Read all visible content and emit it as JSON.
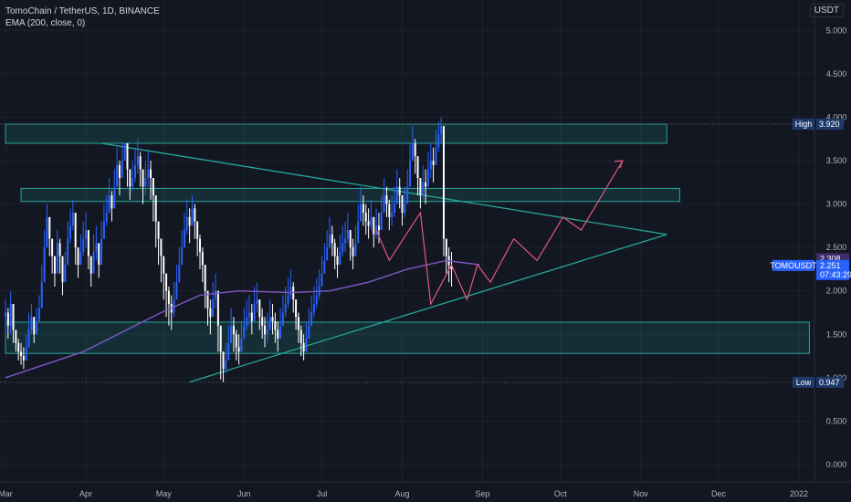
{
  "legend": {
    "symbol": "TomoChain / TetherUS, 1D, BINANCE",
    "indicator": "EMA (200, close, 0)"
  },
  "currency": "USDT",
  "colors": {
    "background": "#131722",
    "grid": "#1e222d",
    "up": "#2962ff",
    "down": "#ffffff",
    "ema": "#7e57c2",
    "trendline": "#26a69a",
    "zone": "#26a69a",
    "projection": "#e2587e",
    "badge_current": "#2962ff",
    "badge_hi_lo": "#1e3a6b"
  },
  "chart_data": {
    "type": "candlestick",
    "y_axis": {
      "ticks": [
        "5.000",
        "4.500",
        "4.000",
        "3.500",
        "3.000",
        "2.500",
        "2.000",
        "1.500",
        "1.000",
        "0.500",
        "0.000"
      ],
      "range": [
        -0.2,
        5.35
      ]
    },
    "x_axis": {
      "ticks": [
        "Mar",
        "Apr",
        "May",
        "Jun",
        "Jul",
        "Aug",
        "Sep",
        "Oct",
        "Nov",
        "Dec",
        "2022"
      ]
    },
    "series": [
      {
        "name": "TOMOUSDT",
        "x_start": "2021-03-01",
        "close": [
          1.75,
          1.6,
          1.85,
          1.55,
          1.4,
          1.3,
          1.25,
          1.2,
          1.35,
          1.55,
          1.7,
          1.5,
          1.65,
          1.8,
          2.1,
          2.5,
          2.85,
          2.6,
          2.4,
          2.2,
          2.55,
          2.4,
          2.1,
          2.3,
          2.6,
          2.75,
          2.9,
          2.5,
          2.3,
          2.45,
          2.6,
          2.7,
          2.4,
          2.2,
          2.45,
          2.55,
          2.3,
          2.6,
          2.8,
          2.9,
          3.1,
          2.95,
          3.2,
          3.45,
          3.3,
          3.5,
          3.7,
          3.4,
          3.2,
          3.3,
          3.45,
          3.55,
          3.4,
          3.2,
          3.3,
          3.4,
          3.3,
          3.1,
          2.8,
          2.6,
          2.4,
          2.2,
          2.0,
          1.85,
          1.75,
          1.9,
          2.1,
          2.3,
          2.5,
          2.7,
          2.85,
          2.75,
          2.95,
          2.8,
          2.6,
          2.45,
          2.3,
          2.0,
          1.8,
          1.7,
          1.9,
          2.0,
          1.6,
          1.3,
          1.1,
          1.2,
          1.4,
          1.6,
          1.5,
          1.35,
          1.3,
          1.45,
          1.6,
          1.7,
          1.75,
          1.65,
          1.85,
          1.9,
          1.7,
          1.6,
          1.5,
          1.55,
          1.7,
          1.65,
          1.55,
          1.45,
          1.6,
          1.75,
          1.85,
          1.95,
          2.05,
          1.9,
          1.7,
          1.55,
          1.4,
          1.3,
          1.45,
          1.6,
          1.75,
          1.85,
          1.95,
          2.05,
          2.2,
          2.35,
          2.5,
          2.65,
          2.55,
          2.4,
          2.3,
          2.45,
          2.55,
          2.6,
          2.7,
          2.5,
          2.4,
          2.55,
          2.8,
          3.0,
          2.9,
          2.8,
          2.75,
          2.85,
          2.65,
          2.75,
          2.7,
          2.9,
          3.1,
          3.0,
          2.85,
          2.9,
          3.0,
          3.2,
          3.1,
          2.9,
          3.0,
          3.2,
          3.5,
          3.7,
          3.55,
          3.3,
          3.1,
          3.25,
          3.2,
          3.4,
          3.5,
          3.45,
          3.65,
          3.8,
          3.9,
          2.6,
          2.4,
          2.3,
          2.25
        ],
        "lows": [
          1.5,
          1.45,
          1.5,
          1.4,
          1.3,
          1.2,
          1.15,
          1.1,
          1.2,
          1.4,
          1.5,
          1.4,
          1.5,
          1.65,
          1.9,
          2.3,
          2.6,
          2.4,
          2.2,
          2.05,
          2.3,
          2.2,
          1.95,
          2.15,
          2.4,
          2.55,
          2.7,
          2.3,
          2.15,
          2.3,
          2.4,
          2.5,
          2.25,
          2.05,
          2.3,
          2.35,
          2.15,
          2.4,
          2.65,
          2.75,
          2.9,
          2.8,
          3.0,
          3.25,
          3.1,
          3.3,
          3.5,
          3.2,
          3.05,
          3.15,
          3.25,
          3.35,
          3.2,
          3.0,
          3.1,
          3.2,
          3.05,
          2.8,
          2.5,
          2.3,
          2.1,
          1.9,
          1.7,
          1.6,
          1.55,
          1.7,
          1.9,
          2.1,
          2.3,
          2.5,
          2.65,
          2.55,
          2.75,
          2.6,
          2.4,
          2.25,
          2.1,
          1.8,
          1.6,
          1.5,
          1.7,
          1.8,
          1.3,
          0.98,
          0.95,
          1.05,
          1.25,
          1.4,
          1.3,
          1.2,
          1.15,
          1.3,
          1.45,
          1.55,
          1.6,
          1.5,
          1.7,
          1.75,
          1.55,
          1.45,
          1.35,
          1.4,
          1.55,
          1.5,
          1.4,
          1.3,
          1.45,
          1.6,
          1.7,
          1.8,
          1.9,
          1.75,
          1.55,
          1.4,
          1.25,
          1.2,
          1.3,
          1.45,
          1.6,
          1.7,
          1.8,
          1.9,
          2.05,
          2.2,
          2.35,
          2.5,
          2.4,
          2.25,
          2.15,
          2.3,
          2.4,
          2.45,
          2.55,
          2.35,
          2.25,
          2.4,
          2.65,
          2.85,
          2.75,
          2.65,
          2.6,
          2.7,
          2.5,
          2.6,
          2.55,
          2.75,
          2.95,
          2.85,
          2.7,
          2.75,
          2.85,
          3.0,
          2.95,
          2.75,
          2.85,
          3.0,
          3.3,
          3.5,
          3.35,
          3.1,
          2.95,
          3.05,
          3.0,
          3.2,
          3.3,
          3.25,
          3.45,
          3.6,
          3.7,
          2.4,
          2.2,
          2.1,
          2.05
        ],
        "highs": [
          1.9,
          1.8,
          2.0,
          1.7,
          1.55,
          1.45,
          1.4,
          1.35,
          1.5,
          1.75,
          1.85,
          1.65,
          1.8,
          1.95,
          2.3,
          2.7,
          3.0,
          2.8,
          2.6,
          2.4,
          2.7,
          2.6,
          2.3,
          2.45,
          2.8,
          2.95,
          3.05,
          2.7,
          2.5,
          2.65,
          2.8,
          2.9,
          2.6,
          2.4,
          2.65,
          2.75,
          2.5,
          2.8,
          3.0,
          3.1,
          3.3,
          3.15,
          3.4,
          3.65,
          3.5,
          3.7,
          3.65,
          3.6,
          3.4,
          3.5,
          3.65,
          3.75,
          3.6,
          3.4,
          3.5,
          3.6,
          3.5,
          3.3,
          3.0,
          2.8,
          2.6,
          2.4,
          2.2,
          2.05,
          1.95,
          2.1,
          2.3,
          2.5,
          2.7,
          2.9,
          3.05,
          2.95,
          3.1,
          3.0,
          2.8,
          2.65,
          2.5,
          2.2,
          2.0,
          1.9,
          2.1,
          2.2,
          1.8,
          1.5,
          1.3,
          1.4,
          1.6,
          1.8,
          1.7,
          1.55,
          1.5,
          1.65,
          1.8,
          1.9,
          1.95,
          1.85,
          2.05,
          2.1,
          1.9,
          1.8,
          1.7,
          1.75,
          1.9,
          1.85,
          1.75,
          1.65,
          1.8,
          1.95,
          2.05,
          2.15,
          2.25,
          2.1,
          1.9,
          1.75,
          1.6,
          1.5,
          1.65,
          1.8,
          1.95,
          2.05,
          2.15,
          2.25,
          2.4,
          2.55,
          2.7,
          2.85,
          2.75,
          2.6,
          2.5,
          2.65,
          2.75,
          2.8,
          2.9,
          2.7,
          2.6,
          2.75,
          3.0,
          3.2,
          3.1,
          3.0,
          2.95,
          3.05,
          2.85,
          2.95,
          2.9,
          3.1,
          3.3,
          3.2,
          3.05,
          3.1,
          3.2,
          3.4,
          3.3,
          3.1,
          3.2,
          3.4,
          3.7,
          3.9,
          3.75,
          3.5,
          3.3,
          3.45,
          3.4,
          3.6,
          3.7,
          3.65,
          3.85,
          3.95,
          4.0,
          3.1,
          2.6,
          2.5,
          2.45
        ]
      },
      {
        "name": "EMA (200, close, 0)",
        "points": [
          [
            0,
            1.0
          ],
          [
            30,
            1.3
          ],
          [
            60,
            1.75
          ],
          [
            75,
            1.95
          ],
          [
            90,
            2.0
          ],
          [
            110,
            1.98
          ],
          [
            125,
            2.0
          ],
          [
            140,
            2.1
          ],
          [
            155,
            2.25
          ],
          [
            170,
            2.35
          ],
          [
            183,
            2.3
          ]
        ]
      }
    ],
    "zones": [
      {
        "top": 3.92,
        "bottom": 3.7,
        "x_start": 0,
        "x_end": 255
      },
      {
        "top": 3.18,
        "bottom": 3.03,
        "x_start": 6,
        "x_end": 260
      },
      {
        "top": 1.64,
        "bottom": 1.28,
        "x_start": 0,
        "x_end": 310
      }
    ],
    "trendlines": [
      {
        "from": [
          37,
          3.7
        ],
        "to": [
          255,
          2.65
        ]
      },
      {
        "from": [
          71,
          0.95
        ],
        "to": [
          255,
          2.65
        ]
      }
    ],
    "projection": [
      [
        143,
        2.7
      ],
      [
        148,
        2.35
      ],
      [
        160,
        2.9
      ],
      [
        164,
        1.85
      ],
      [
        172,
        2.3
      ],
      [
        178,
        1.9
      ],
      [
        182,
        2.3
      ],
      [
        187,
        2.1
      ],
      [
        196,
        2.6
      ],
      [
        205,
        2.35
      ],
      [
        215,
        2.85
      ],
      [
        222,
        2.7
      ],
      [
        238,
        3.5
      ],
      [
        240,
        3.4
      ],
      [
        243,
        3.55
      ],
      [
        238,
        3.6
      ]
    ],
    "price_badges": [
      {
        "label": "High",
        "value": "3.920",
        "price": 3.92
      },
      {
        "label": "",
        "value": "2.308",
        "price": 2.308
      },
      {
        "label": "TOMOUSDT",
        "value": "2.251",
        "price": 2.251,
        "sub": "07:43:29"
      },
      {
        "label": "Low",
        "value": "0.947",
        "price": 0.947
      }
    ]
  }
}
